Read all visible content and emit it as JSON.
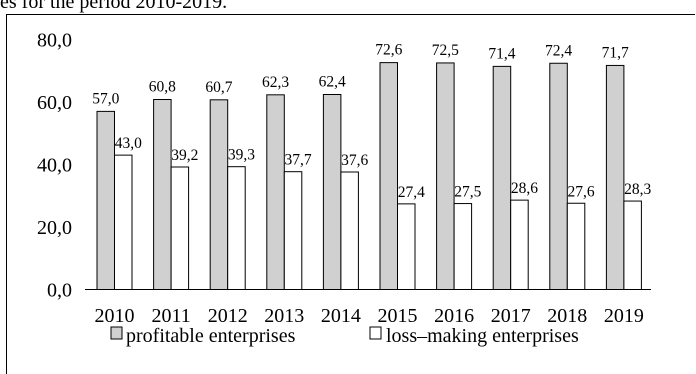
{
  "caption": "es for the period 2010-2019.",
  "chart_data": {
    "type": "bar",
    "categories": [
      "2010",
      "2011",
      "2012",
      "2013",
      "2014",
      "2015",
      "2016",
      "2017",
      "2018",
      "2019"
    ],
    "series": [
      {
        "name": "profitable enterprises",
        "values": [
          57.0,
          60.8,
          60.7,
          62.3,
          62.4,
          72.6,
          72.5,
          71.4,
          72.4,
          71.7
        ],
        "labels": [
          "57,0",
          "60,8",
          "60,7",
          "62,3",
          "62,4",
          "72,6",
          "72,5",
          "71,4",
          "72,4",
          "71,7"
        ],
        "color": "#d0d0d0"
      },
      {
        "name": "loss–making enterprises",
        "values": [
          43.0,
          39.2,
          39.3,
          37.7,
          37.6,
          27.4,
          27.5,
          28.6,
          27.6,
          28.3
        ],
        "labels": [
          "43,0",
          "39,2",
          "39,3",
          "37,7",
          "37,6",
          "27,4",
          "27,5",
          "28,6",
          "27,6",
          "28,3"
        ],
        "color": "#ffffff"
      }
    ],
    "yticks": [
      "0,0",
      "20,0",
      "40,0",
      "60,0",
      "80,0"
    ],
    "ylim": [
      0,
      80
    ],
    "xlabel": "",
    "ylabel": "",
    "legend_position": "bottom",
    "grid": false
  }
}
